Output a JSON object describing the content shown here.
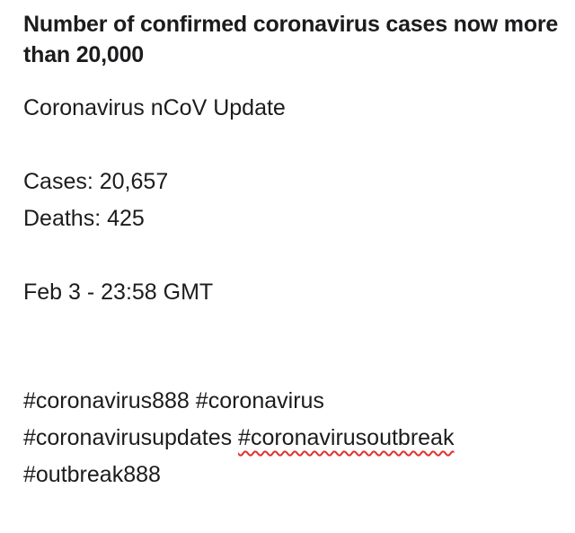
{
  "note": {
    "headline": "Number of confirmed coronavirus cases now more than 20,000",
    "update_title": "Coronavirus nCoV Update",
    "cases": "Cases: 20,657",
    "deaths": "Deaths: 425",
    "timestamp": "Feb 3 - 23:58 GMT",
    "hashtags": [
      "#coronavirus888",
      "#coronavirus",
      "#coronavirusupdates",
      "#coronavirusoutbreak",
      "#outbreak888"
    ],
    "spellcheck_underline_color": "#e0322e"
  }
}
